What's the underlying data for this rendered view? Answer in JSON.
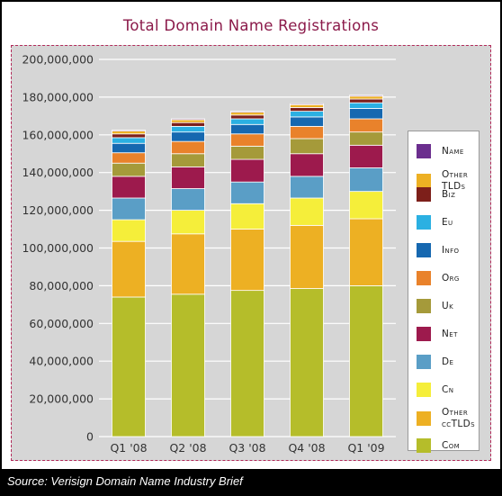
{
  "title": "Total Domain Name Registrations",
  "source": "Source: Verisign Domain Name Industry Brief",
  "colors": {
    "title": "#8b1a4a",
    "frame_border": "#b22a5a",
    "plot_bg": "#d6d6d6",
    "gridline": "#ffffff"
  },
  "chart_data": {
    "type": "bar",
    "stacked": true,
    "title": "Total Domain Name Registrations",
    "xlabel": "",
    "ylabel": "",
    "ylim": [
      0,
      200000000
    ],
    "yticks": [
      "0",
      "20,000,000",
      "40,000,000",
      "60,000,000",
      "80,000,000",
      "100,000,000",
      "120,000,000",
      "140,000,000",
      "160,000,000",
      "180,000,000",
      "200,000,000"
    ],
    "ytick_values": [
      0,
      20000000,
      40000000,
      60000000,
      80000000,
      100000000,
      120000000,
      140000000,
      160000000,
      180000000,
      200000000
    ],
    "grid": true,
    "legend_position": "right",
    "categories": [
      "Q1 '08",
      "Q2 '08",
      "Q3 '08",
      "Q4 '08",
      "Q1 '09"
    ],
    "series": [
      {
        "name": "Com",
        "color": "#b5bd2a",
        "values": [
          74000000,
          75500000,
          77500000,
          78500000,
          80000000
        ]
      },
      {
        "name": "Other ccTLDs",
        "color": "#edb023",
        "values": [
          29500000,
          32000000,
          32500000,
          33500000,
          35500000
        ]
      },
      {
        "name": "Cn",
        "color": "#f5ee3a",
        "values": [
          11500000,
          12500000,
          13500000,
          14500000,
          14500000
        ]
      },
      {
        "name": "De",
        "color": "#5a9ec6",
        "values": [
          11500000,
          11500000,
          11500000,
          11500000,
          12500000
        ]
      },
      {
        "name": "Net",
        "color": "#9d1a4d",
        "values": [
          11500000,
          11500000,
          12000000,
          12000000,
          12000000
        ]
      },
      {
        "name": "Uk",
        "color": "#a59a3a",
        "values": [
          7000000,
          7000000,
          7000000,
          8000000,
          7000000
        ]
      },
      {
        "name": "Org",
        "color": "#e9822b",
        "values": [
          5500000,
          6500000,
          6500000,
          6500000,
          7000000
        ]
      },
      {
        "name": "Info",
        "color": "#1668b0",
        "values": [
          5000000,
          5000000,
          5000000,
          5000000,
          5500000
        ]
      },
      {
        "name": "Eu",
        "color": "#2bb0e2",
        "values": [
          3000000,
          3000000,
          3000000,
          3000000,
          3000000
        ]
      },
      {
        "name": "Biz",
        "color": "#7d1f1a",
        "values": [
          2000000,
          2000000,
          2000000,
          2000000,
          2000000
        ]
      },
      {
        "name": "Other TLDs",
        "color": "#edb023",
        "values": [
          1500000,
          1500000,
          1500000,
          1500000,
          1500000
        ]
      },
      {
        "name": "Name",
        "color": "#6b2e8e",
        "values": [
          500000,
          500000,
          500000,
          500000,
          500000
        ]
      }
    ],
    "legend_order": [
      "Name",
      "Other TLDs",
      "Biz",
      "Eu",
      "Info",
      "Org",
      "Uk",
      "Net",
      "De",
      "Cn",
      "Other ccTLDs",
      "Com"
    ]
  }
}
